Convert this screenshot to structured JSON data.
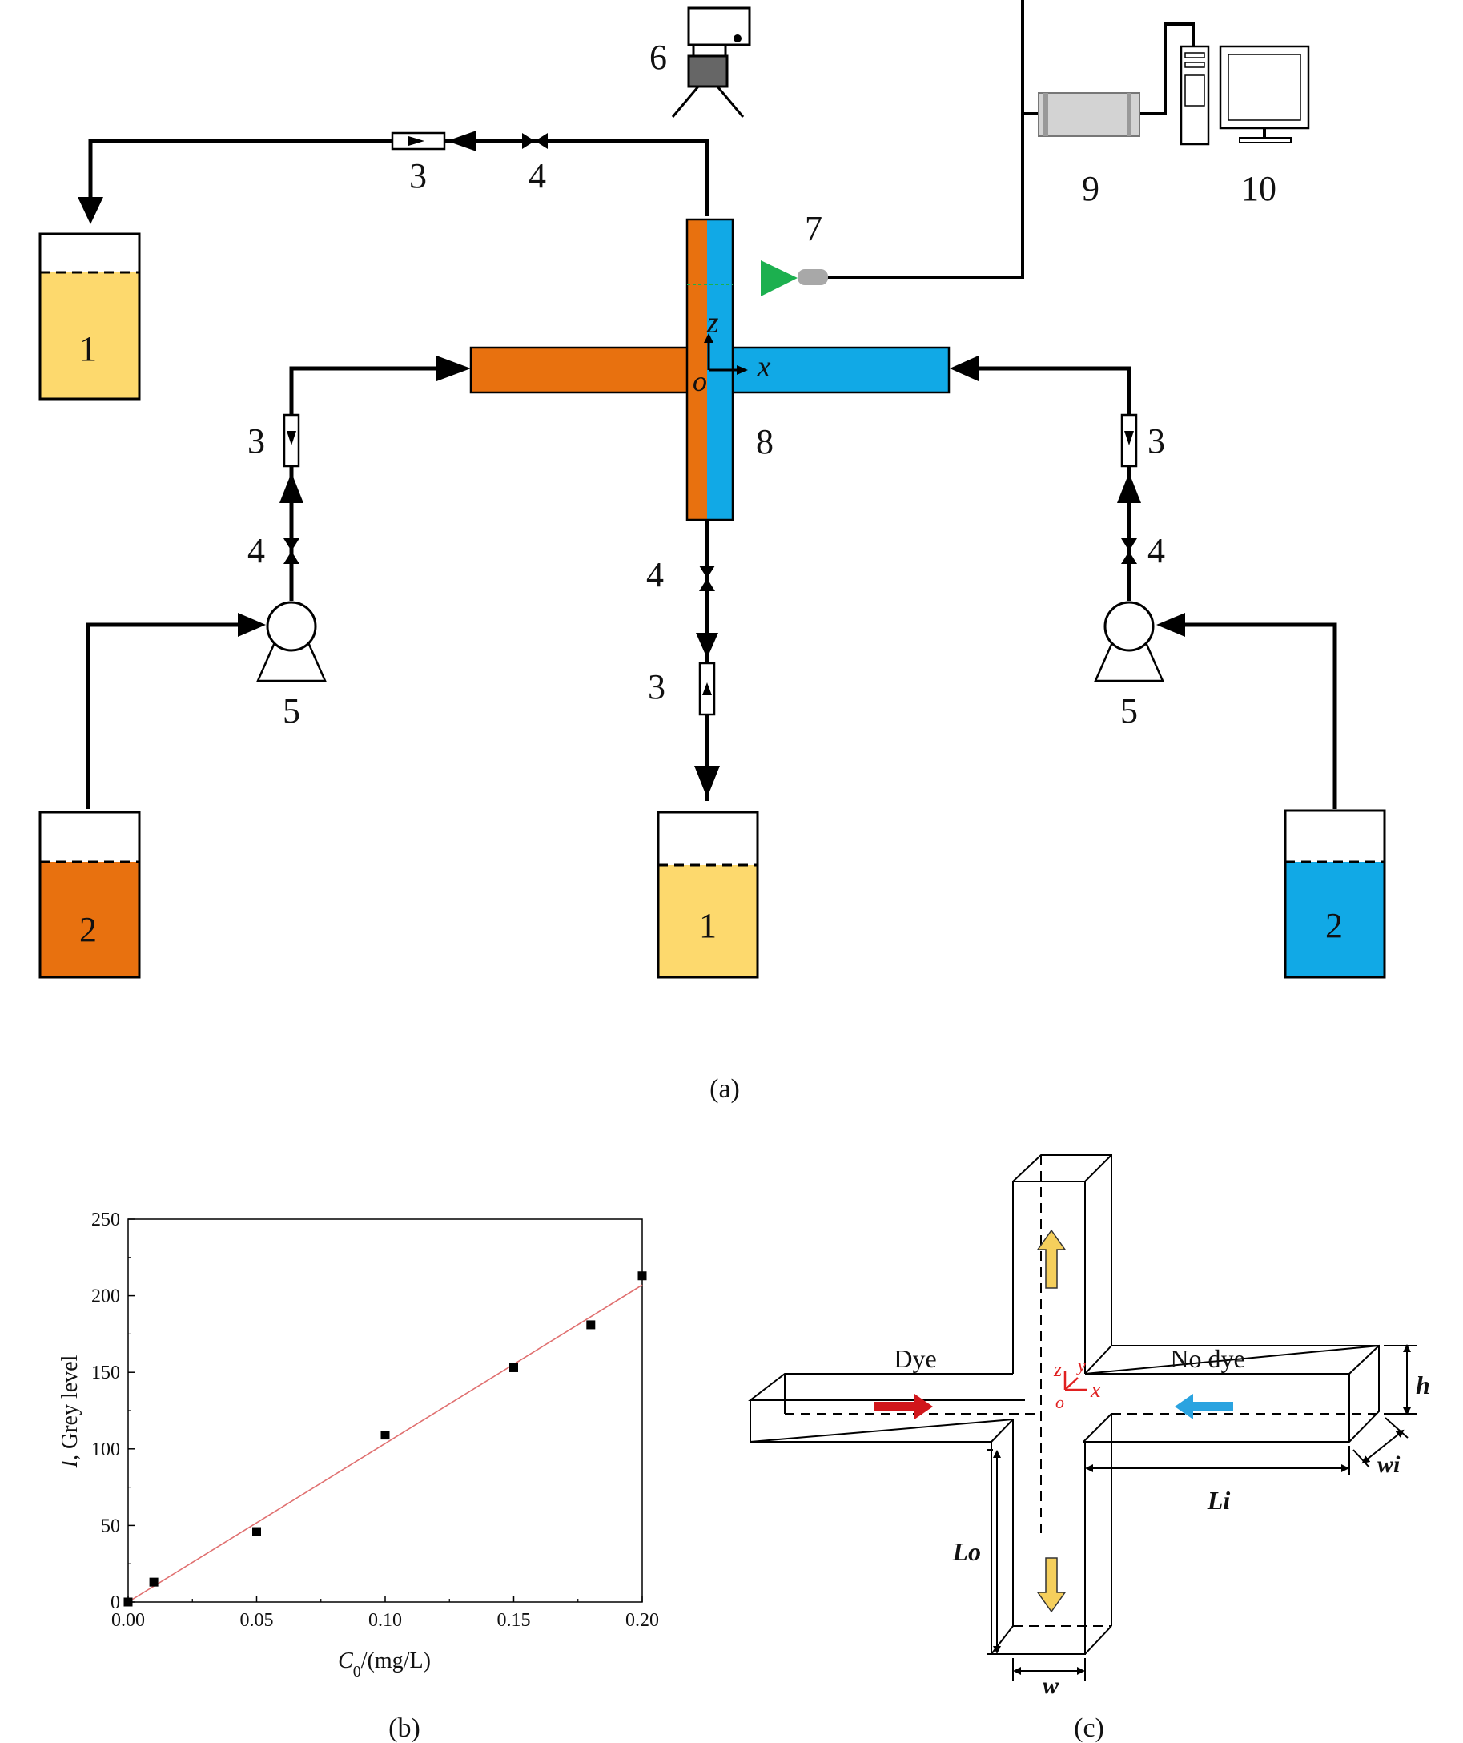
{
  "panel_a": {
    "caption": "(a)",
    "labels": {
      "storage_tank": "1",
      "feed_tank": "2",
      "flowmeter": "3",
      "valve": "4",
      "pump": "5",
      "camera": "6",
      "laser": "7",
      "cross_channel": "8",
      "controller": "9",
      "computer": "10"
    },
    "axes": {
      "z": "z",
      "x": "x",
      "origin": "o"
    },
    "colors": {
      "dye": "#e8710f",
      "no_dye": "#11a9e6",
      "storage": "#fdd96d",
      "laser": "#1cb04f",
      "laser_body": "#a8a8a8"
    }
  },
  "panel_b": {
    "caption": "(b)",
    "chart_data": {
      "type": "scatter",
      "title": "",
      "xlabel": "C0/(mg/L)",
      "xlabel_base": "C",
      "xlabel_sub": "0",
      "xlabel_rest": "/(mg/L)",
      "ylabel": "I, Grey level",
      "ylabel_sym": "I",
      "ylabel_rest": ", Grey level",
      "xlim": [
        0,
        0.2
      ],
      "ylim": [
        0,
        250
      ],
      "xticks": [
        "0.00",
        "0.05",
        "0.10",
        "0.15",
        "0.20"
      ],
      "yticks": [
        "0",
        "50",
        "100",
        "150",
        "200",
        "250"
      ],
      "points": [
        {
          "x": 0.0,
          "y": 0
        },
        {
          "x": 0.01,
          "y": 13
        },
        {
          "x": 0.05,
          "y": 46
        },
        {
          "x": 0.1,
          "y": 109
        },
        {
          "x": 0.15,
          "y": 153
        },
        {
          "x": 0.18,
          "y": 181
        },
        {
          "x": 0.2,
          "y": 213
        }
      ],
      "fit_line": {
        "x": [
          0.0,
          0.2
        ],
        "y": [
          0,
          207
        ],
        "color": "#e07070"
      },
      "grid": false
    }
  },
  "panel_c": {
    "caption": "(c)",
    "dye_label": "Dye",
    "no_dye_label": "No dye",
    "dims": {
      "h": "h",
      "wi": "wi",
      "Li": "Li",
      "Lo": "Lo",
      "w": "w"
    },
    "axes": {
      "z": "z",
      "x": "x",
      "y": "y",
      "origin": "o"
    },
    "colors": {
      "dye_arrow": "#d1161b",
      "no_dye_arrow": "#2aa3e0",
      "outlet_arrow": "#f5cf5c",
      "axes": "#e02020"
    }
  }
}
